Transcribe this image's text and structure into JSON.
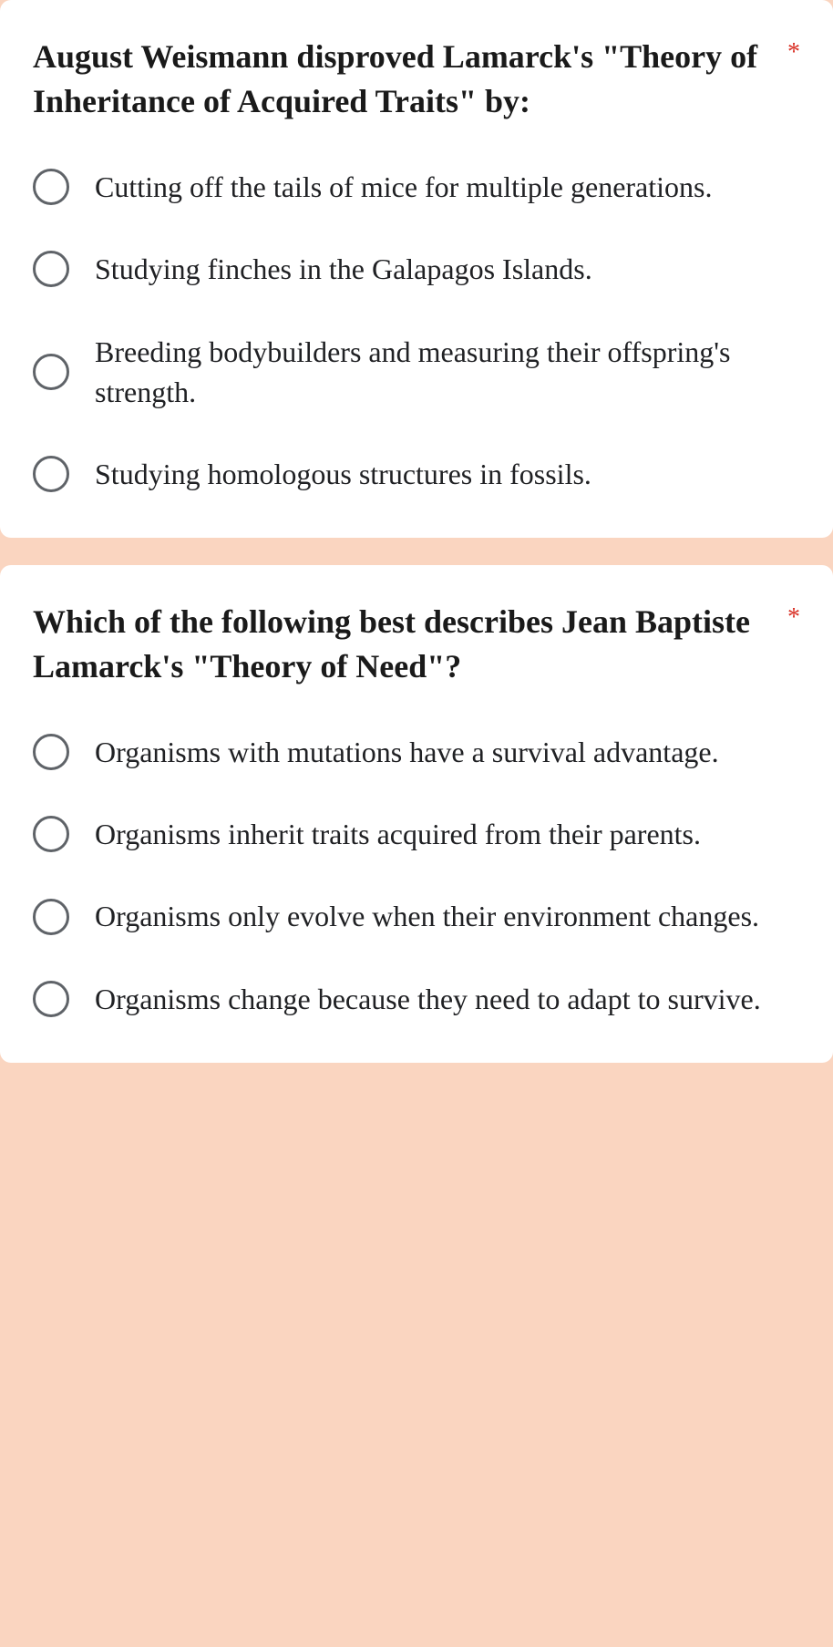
{
  "colors": {
    "background": "#fad5c0",
    "card_background": "#ffffff",
    "title_text": "#1a1a1a",
    "option_text": "#202124",
    "radio_border": "#5f6368",
    "required": "#d93025"
  },
  "typography": {
    "title_fontsize": 36,
    "option_fontsize": 32,
    "font_family": "Georgia"
  },
  "questions": [
    {
      "title": "August Weismann disproved Lamarck's \"Theory of Inheritance of Acquired Traits\" by:",
      "required": true,
      "required_mark": "*",
      "options": [
        "Cutting off the tails of mice for multiple generations.",
        "Studying finches in the Galapagos Islands.",
        "Breeding bodybuilders and measuring their offspring's strength.",
        "Studying homologous structures in fossils."
      ]
    },
    {
      "title": "Which of the following best describes Jean Baptiste Lamarck's \"Theory of Need\"?",
      "required": true,
      "required_mark": "*",
      "options": [
        "Organisms with mutations have a survival advantage.",
        "Organisms inherit traits acquired from their parents.",
        "Organisms only evolve when their environment changes.",
        "Organisms change because they need to adapt to survive."
      ]
    }
  ]
}
